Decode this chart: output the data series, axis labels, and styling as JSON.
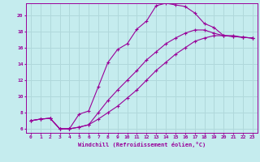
{
  "title": "",
  "xlabel": "Windchill (Refroidissement éolien,°C)",
  "ylabel": "",
  "bg_color": "#c5ecee",
  "line_color": "#990099",
  "grid_color": "#b0d8db",
  "xlim": [
    -0.5,
    23.5
  ],
  "ylim": [
    5.5,
    21.5
  ],
  "xticks": [
    0,
    1,
    2,
    3,
    4,
    5,
    6,
    7,
    8,
    9,
    10,
    11,
    12,
    13,
    14,
    15,
    16,
    17,
    18,
    19,
    20,
    21,
    22,
    23
  ],
  "yticks": [
    6,
    8,
    10,
    12,
    14,
    16,
    18,
    20
  ],
  "curve1_x": [
    0,
    1,
    2,
    3,
    4,
    5,
    6,
    7,
    8,
    9,
    10,
    11,
    12,
    13,
    14,
    15,
    16,
    17,
    18,
    19,
    20,
    21,
    22,
    23
  ],
  "curve1_y": [
    7.0,
    7.2,
    7.3,
    6.0,
    6.0,
    7.8,
    8.2,
    11.2,
    14.2,
    15.8,
    16.5,
    18.3,
    19.3,
    21.2,
    21.5,
    21.3,
    21.1,
    20.3,
    19.0,
    18.5,
    17.5,
    17.5,
    17.3,
    17.2
  ],
  "curve2_x": [
    0,
    1,
    2,
    3,
    4,
    5,
    6,
    7,
    8,
    9,
    10,
    11,
    12,
    13,
    14,
    15,
    16,
    17,
    18,
    19,
    20,
    21,
    22,
    23
  ],
  "curve2_y": [
    7.0,
    7.2,
    7.3,
    6.0,
    6.0,
    6.2,
    6.5,
    8.0,
    9.5,
    10.8,
    12.0,
    13.2,
    14.5,
    15.5,
    16.5,
    17.2,
    17.8,
    18.2,
    18.2,
    17.8,
    17.5,
    17.4,
    17.3,
    17.2
  ],
  "curve3_x": [
    0,
    1,
    2,
    3,
    4,
    5,
    6,
    7,
    8,
    9,
    10,
    11,
    12,
    13,
    14,
    15,
    16,
    17,
    18,
    19,
    20,
    21,
    22,
    23
  ],
  "curve3_y": [
    7.0,
    7.2,
    7.3,
    6.0,
    6.0,
    6.2,
    6.5,
    7.2,
    8.0,
    8.8,
    9.8,
    10.8,
    12.0,
    13.2,
    14.2,
    15.2,
    16.0,
    16.8,
    17.2,
    17.5,
    17.5,
    17.4,
    17.3,
    17.2
  ]
}
